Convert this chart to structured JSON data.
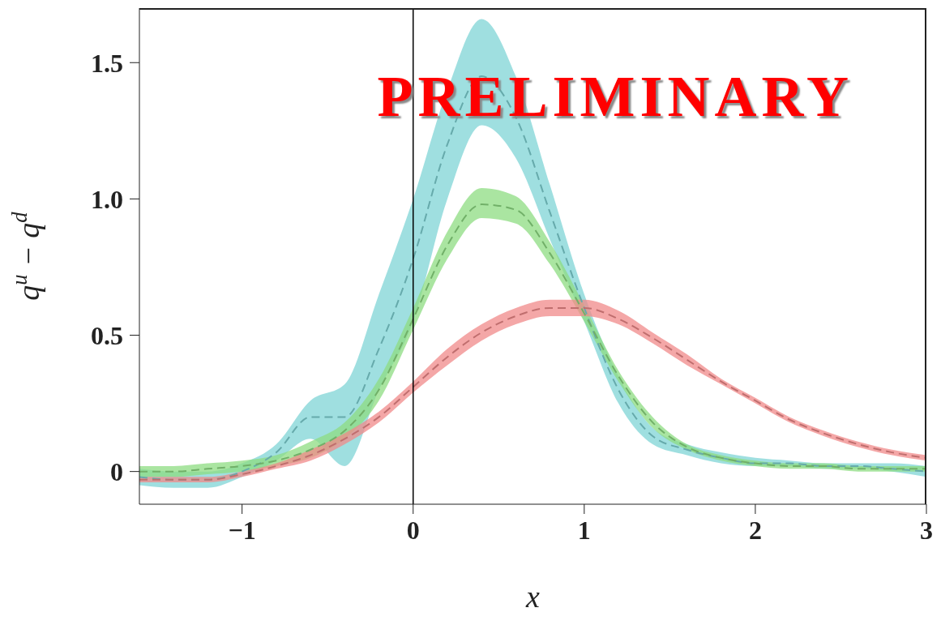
{
  "chart_data": {
    "type": "line",
    "xlabel": "x",
    "ylabel": "q$^{u}$ − q$^{d}$",
    "annotations": [
      "PRELIMINARY"
    ],
    "x": [
      -1.6,
      -1.4,
      -1.2,
      -1.0,
      -0.8,
      -0.6,
      -0.4,
      -0.2,
      0,
      0.2,
      0.4,
      0.6,
      0.8,
      1.0,
      1.2,
      1.4,
      1.6,
      1.8,
      2.0,
      2.2,
      2.4,
      2.6,
      2.8,
      3.0
    ],
    "series": [
      {
        "color": "#7fd4d6",
        "values": [
          -0.02,
          -0.03,
          -0.03,
          0.0,
          0.07,
          0.2,
          0.2,
          0.45,
          0.78,
          1.2,
          1.45,
          1.3,
          0.95,
          0.6,
          0.3,
          0.13,
          0.08,
          0.05,
          0.03,
          0.03,
          0.02,
          0.02,
          0.01,
          0.0
        ],
        "lower": [
          -0.05,
          -0.06,
          -0.06,
          -0.02,
          0.04,
          0.12,
          0.02,
          0.3,
          0.55,
          1.0,
          1.27,
          1.15,
          0.85,
          0.55,
          0.25,
          0.1,
          0.06,
          0.03,
          0.02,
          0.02,
          0.01,
          0.01,
          0.0,
          -0.02
        ],
        "upper": [
          0.01,
          0.0,
          0.0,
          0.03,
          0.1,
          0.26,
          0.32,
          0.65,
          1.0,
          1.4,
          1.66,
          1.45,
          1.05,
          0.65,
          0.35,
          0.16,
          0.1,
          0.07,
          0.05,
          0.04,
          0.03,
          0.03,
          0.03,
          0.02
        ]
      },
      {
        "color": "#8ddc82",
        "values": [
          0,
          0,
          0.01,
          0.02,
          0.04,
          0.08,
          0.15,
          0.3,
          0.56,
          0.83,
          0.98,
          0.96,
          0.8,
          0.58,
          0.35,
          0.18,
          0.09,
          0.05,
          0.03,
          0.02,
          0.02,
          0.01,
          0.01,
          0.01
        ],
        "lower": [
          -0.02,
          -0.02,
          -0.01,
          0.0,
          0.02,
          0.05,
          0.12,
          0.26,
          0.52,
          0.78,
          0.93,
          0.91,
          0.76,
          0.55,
          0.33,
          0.16,
          0.08,
          0.04,
          0.02,
          0.01,
          0.01,
          0.0,
          0.0,
          0.0
        ],
        "upper": [
          0.02,
          0.02,
          0.03,
          0.04,
          0.06,
          0.11,
          0.18,
          0.34,
          0.6,
          0.88,
          1.04,
          1.01,
          0.84,
          0.61,
          0.37,
          0.2,
          0.1,
          0.06,
          0.04,
          0.03,
          0.03,
          0.02,
          0.02,
          0.02
        ]
      },
      {
        "color": "#f08a8a",
        "values": [
          -0.03,
          -0.03,
          -0.03,
          -0.01,
          0.02,
          0.06,
          0.12,
          0.2,
          0.31,
          0.42,
          0.51,
          0.57,
          0.6,
          0.6,
          0.56,
          0.49,
          0.41,
          0.33,
          0.26,
          0.19,
          0.14,
          0.1,
          0.07,
          0.05
        ],
        "lower": [
          -0.04,
          -0.04,
          -0.04,
          -0.02,
          0.01,
          0.04,
          0.1,
          0.18,
          0.29,
          0.39,
          0.48,
          0.54,
          0.57,
          0.57,
          0.54,
          0.47,
          0.39,
          0.32,
          0.25,
          0.18,
          0.13,
          0.09,
          0.06,
          0.04
        ],
        "upper": [
          -0.02,
          -0.02,
          -0.02,
          0.0,
          0.03,
          0.08,
          0.14,
          0.22,
          0.33,
          0.45,
          0.54,
          0.6,
          0.63,
          0.63,
          0.59,
          0.51,
          0.43,
          0.34,
          0.27,
          0.2,
          0.15,
          0.11,
          0.08,
          0.06
        ]
      }
    ],
    "xlim": [
      -1.6,
      3
    ],
    "xticks": [
      {
        "value": -1,
        "label": "−1"
      },
      0,
      1,
      2,
      3
    ],
    "ylim": [
      -0.12,
      1.7
    ],
    "yticks": [
      0,
      0.5,
      {
        "value": 1,
        "label": "1.0"
      },
      1.5
    ],
    "ref_lines": [
      {
        "axis": "x",
        "value": 0,
        "color": "#000000"
      }
    ],
    "line_style": "dashed"
  }
}
